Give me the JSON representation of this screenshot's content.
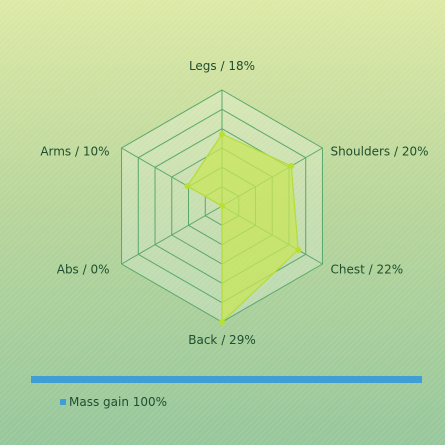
{
  "chart_data": {
    "type": "radar",
    "categories": [
      "Legs",
      "Shoulders",
      "Chest",
      "Back",
      "Abs",
      "Arms"
    ],
    "category_labels": [
      "Legs / 18%",
      "Shoulders / 20%",
      "Chest / 22%",
      "Back / 29%",
      "Abs / 0%",
      "Arms / 10%"
    ],
    "series": [
      {
        "name": "Mass gain",
        "values": [
          18,
          20,
          22,
          29,
          0,
          10
        ]
      }
    ],
    "rmax": 29,
    "grid_rings": 6,
    "legend_text": "Mass gain 100%",
    "legend_position": "bottom-left"
  },
  "colors": {
    "grid": "#5aa86a",
    "fill": "#c8e65a",
    "stroke": "#b3dc3a",
    "point": "#b9e02e",
    "legend_swatch": "#3f9fd4",
    "grid_fill": "rgba(255,255,255,0.22)"
  }
}
